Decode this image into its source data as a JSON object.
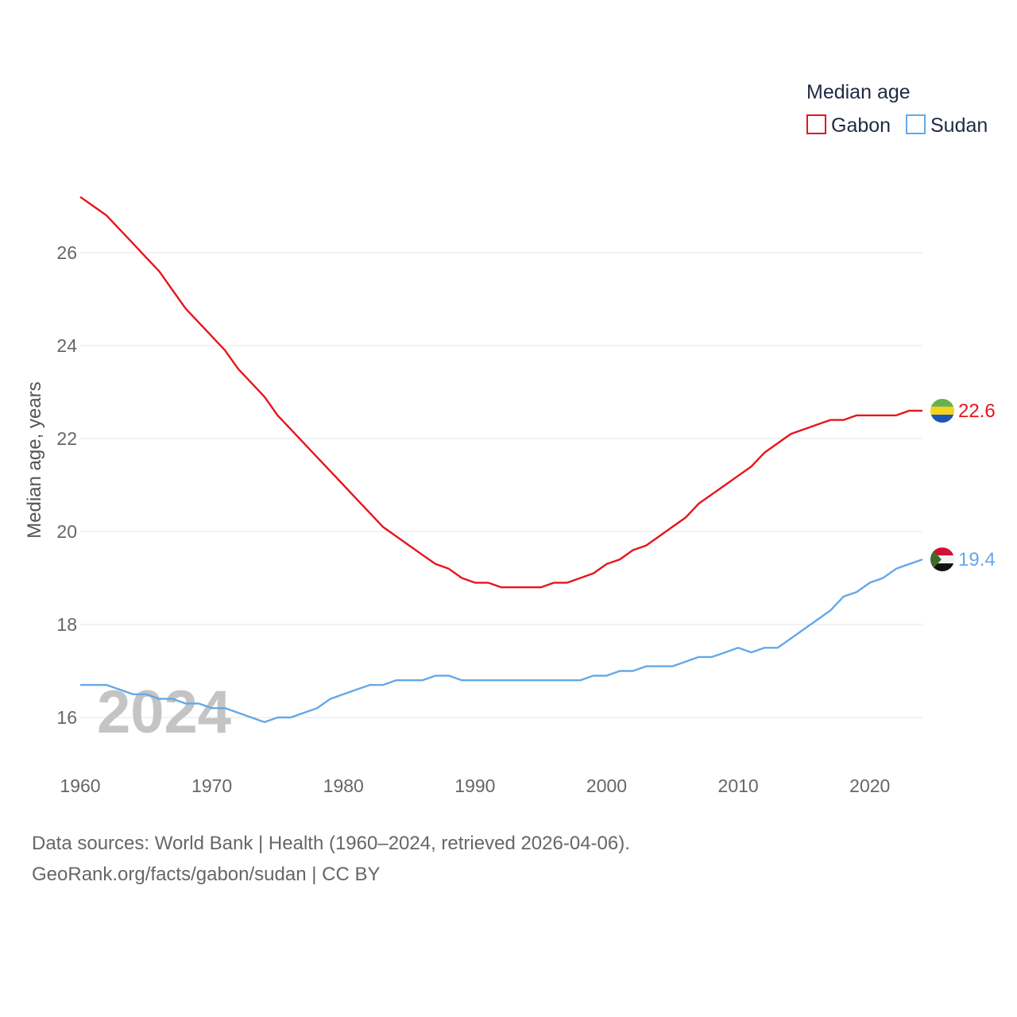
{
  "chart_data": {
    "type": "line",
    "legend_title": "Median age",
    "ylabel": "Median age, years",
    "year_watermark": "2024",
    "xlim": [
      1960,
      2024
    ],
    "ylim": [
      15,
      27.5
    ],
    "x_ticks": [
      1960,
      1970,
      1980,
      1990,
      2000,
      2010,
      2020
    ],
    "y_ticks": [
      16,
      18,
      20,
      22,
      24,
      26
    ],
    "x": [
      1960,
      1961,
      1962,
      1963,
      1964,
      1965,
      1966,
      1967,
      1968,
      1969,
      1970,
      1971,
      1972,
      1973,
      1974,
      1975,
      1976,
      1977,
      1978,
      1979,
      1980,
      1981,
      1982,
      1983,
      1984,
      1985,
      1986,
      1987,
      1988,
      1989,
      1990,
      1991,
      1992,
      1993,
      1994,
      1995,
      1996,
      1997,
      1998,
      1999,
      2000,
      2001,
      2002,
      2003,
      2004,
      2005,
      2006,
      2007,
      2008,
      2009,
      2010,
      2011,
      2012,
      2013,
      2014,
      2015,
      2016,
      2017,
      2018,
      2019,
      2020,
      2021,
      2022,
      2023,
      2024
    ],
    "series": [
      {
        "name": "Gabon",
        "color": "#e8141b",
        "end_label": "22.6",
        "flag": "gabon-flag",
        "values": [
          27.2,
          27.0,
          26.8,
          26.5,
          26.2,
          25.9,
          25.6,
          25.2,
          24.8,
          24.5,
          24.2,
          23.9,
          23.5,
          23.2,
          22.9,
          22.5,
          22.2,
          21.9,
          21.6,
          21.3,
          21.0,
          20.7,
          20.4,
          20.1,
          19.9,
          19.7,
          19.5,
          19.3,
          19.2,
          19.0,
          18.9,
          18.9,
          18.8,
          18.8,
          18.8,
          18.8,
          18.9,
          18.9,
          19.0,
          19.1,
          19.3,
          19.4,
          19.6,
          19.7,
          19.9,
          20.1,
          20.3,
          20.6,
          20.8,
          21.0,
          21.2,
          21.4,
          21.7,
          21.9,
          22.1,
          22.2,
          22.3,
          22.4,
          22.4,
          22.5,
          22.5,
          22.5,
          22.5,
          22.6,
          22.6
        ]
      },
      {
        "name": "Sudan",
        "color": "#64a8e8",
        "end_label": "19.4",
        "flag": "sudan-flag",
        "values": [
          16.7,
          16.7,
          16.7,
          16.6,
          16.5,
          16.5,
          16.4,
          16.4,
          16.3,
          16.3,
          16.2,
          16.2,
          16.1,
          16.0,
          15.9,
          16.0,
          16.0,
          16.1,
          16.2,
          16.4,
          16.5,
          16.6,
          16.7,
          16.7,
          16.8,
          16.8,
          16.8,
          16.9,
          16.9,
          16.8,
          16.8,
          16.8,
          16.8,
          16.8,
          16.8,
          16.8,
          16.8,
          16.8,
          16.8,
          16.9,
          16.9,
          17.0,
          17.0,
          17.1,
          17.1,
          17.1,
          17.2,
          17.3,
          17.3,
          17.4,
          17.5,
          17.4,
          17.5,
          17.5,
          17.7,
          17.9,
          18.1,
          18.3,
          18.6,
          18.7,
          18.9,
          19.0,
          19.2,
          19.3,
          19.4
        ]
      }
    ]
  },
  "footer": {
    "source_line": "Data sources: World Bank | Health (1960–2024, retrieved 2026-04-06).",
    "credit_line": "GeoRank.org/facts/gabon/sudan | CC BY"
  }
}
